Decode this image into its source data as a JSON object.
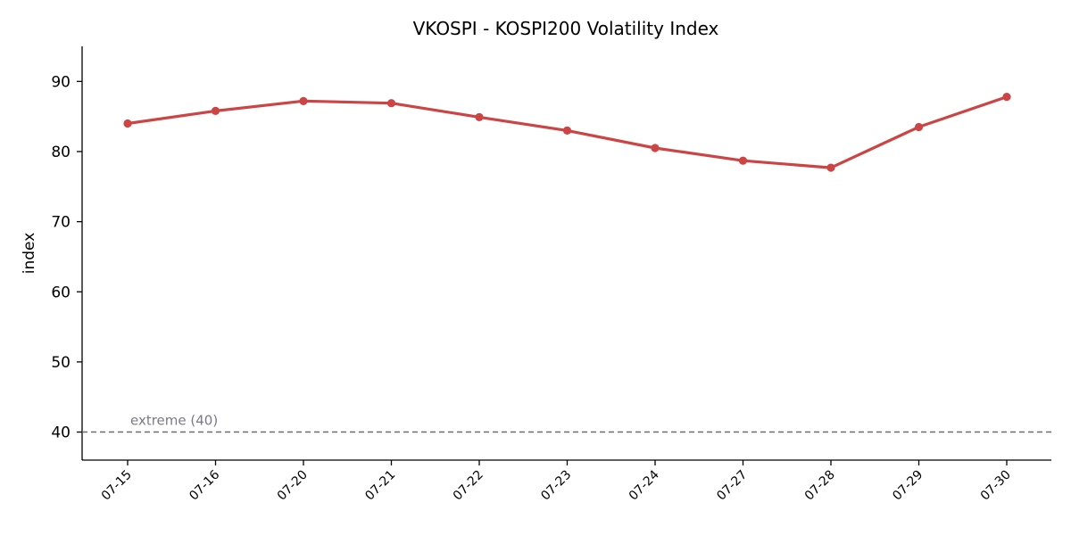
{
  "chart_data": {
    "type": "line",
    "title": "VKOSPI - KOSPI200 Volatility Index",
    "xlabel": "",
    "ylabel": "index",
    "categories": [
      "07-15",
      "07-16",
      "07-20",
      "07-21",
      "07-22",
      "07-23",
      "07-24",
      "07-27",
      "07-28",
      "07-29",
      "07-30"
    ],
    "series": [
      {
        "values": [
          84.0,
          85.8,
          87.2,
          86.9,
          84.9,
          83.0,
          80.5,
          78.7,
          77.7,
          83.5,
          87.8
        ],
        "color": "#cc4444"
      }
    ],
    "ylim": [
      36,
      95
    ],
    "yticks": [
      40,
      50,
      60,
      70,
      80,
      90
    ],
    "reference_line": {
      "value": 40,
      "label": "extreme (40)",
      "color": "#6b6b78",
      "style": "dashed"
    },
    "grid": false,
    "legend": "none"
  }
}
